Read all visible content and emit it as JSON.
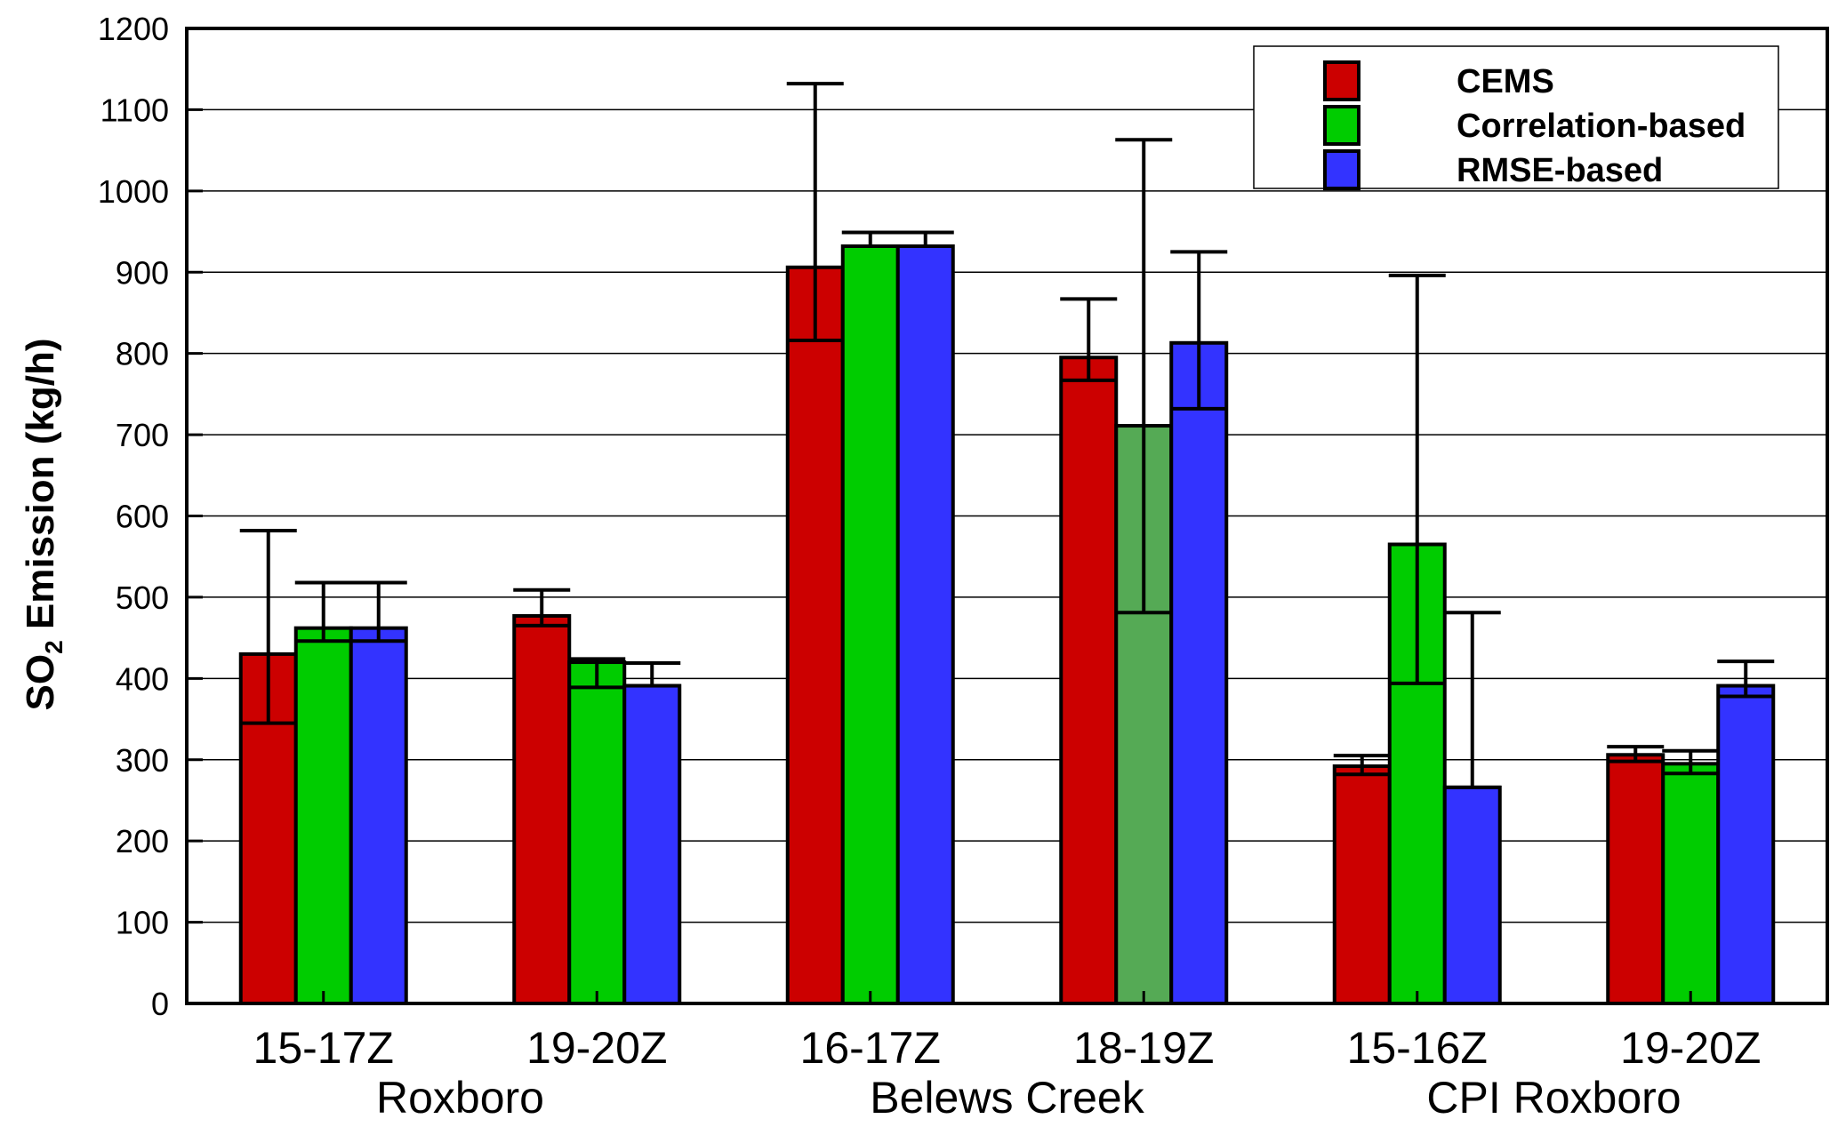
{
  "chart_data": {
    "type": "bar",
    "title": "",
    "xlabel": "",
    "ylabel_parts": [
      "SO",
      "2",
      " Emission (kg/h)"
    ],
    "ylim": [
      0,
      1200
    ],
    "yticks": [
      0,
      100,
      200,
      300,
      400,
      500,
      600,
      700,
      800,
      900,
      1000,
      1100,
      1200
    ],
    "grid": true,
    "legend_position": "top-right",
    "categories": [
      "15-17Z",
      "19-20Z",
      "16-17Z",
      "18-19Z",
      "15-16Z",
      "19-20Z"
    ],
    "groups": [
      {
        "label": "Roxboro",
        "categories": [
          0,
          1
        ]
      },
      {
        "label": "Belews Creek",
        "categories": [
          2,
          3
        ]
      },
      {
        "label": "CPI Roxboro",
        "categories": [
          4,
          5
        ]
      }
    ],
    "series": [
      {
        "name": "CEMS",
        "color": "#cc0000",
        "values": [
          430,
          477,
          906,
          795,
          292,
          306
        ],
        "err_low": [
          345,
          465,
          816,
          767,
          282,
          298
        ],
        "err_high": [
          582,
          509,
          1132,
          867,
          305,
          316
        ]
      },
      {
        "name": "Correlation-based",
        "color": "#00cc00",
        "bar_colors": [
          "#00cc00",
          "#00cc00",
          "#00cc00",
          "#55aa55",
          "#00cc00",
          "#00cc00"
        ],
        "values": [
          462,
          420,
          932,
          711,
          565,
          295
        ],
        "err_low": [
          446,
          389,
          932,
          481,
          394,
          283
        ],
        "err_high": [
          518,
          424,
          949,
          1063,
          896,
          311
        ]
      },
      {
        "name": "RMSE-based",
        "color": "#3333ff",
        "values": [
          462,
          391,
          932,
          813,
          266,
          391
        ],
        "err_low": [
          446,
          391,
          932,
          732,
          266,
          378
        ],
        "err_high": [
          518,
          419,
          949,
          925,
          481,
          421
        ]
      }
    ]
  }
}
